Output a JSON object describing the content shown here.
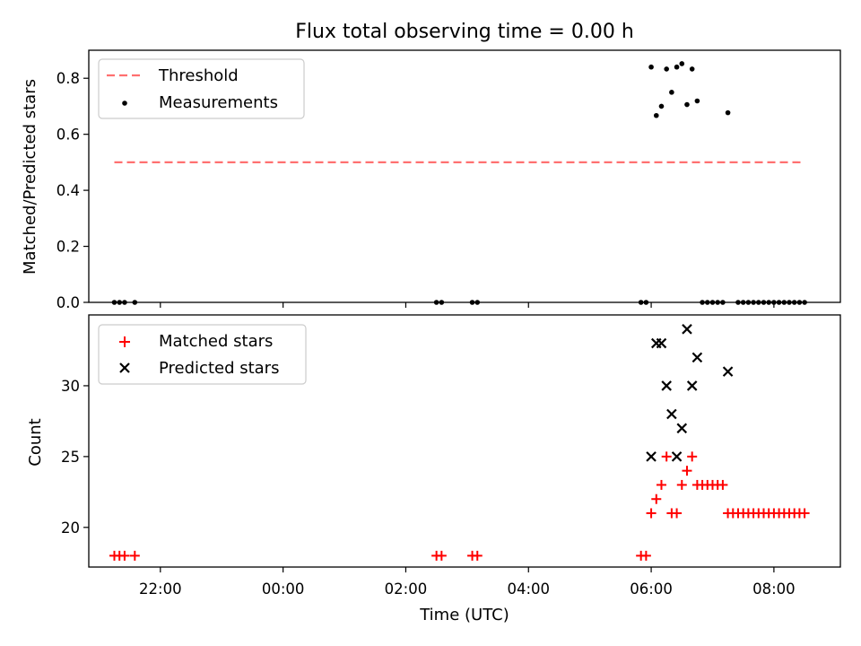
{
  "chart_data": [
    {
      "type": "scatter",
      "title": "Flux total observing time = 0.00 h",
      "ylabel": "Matched/Predicted stars",
      "xlabel": "",
      "ylim": [
        0,
        0.9
      ],
      "yticks": [
        0.0,
        0.2,
        0.4,
        0.6,
        0.8
      ],
      "grid": false,
      "legend_position": "top-left",
      "threshold": {
        "name": "Threshold",
        "value": 0.5,
        "x_start": "21:15",
        "x_end": "08:30",
        "color": "#ff7070",
        "style": "dashed"
      },
      "series": [
        {
          "name": "Measurements",
          "color": "#000000",
          "marker": "dot",
          "points": [
            {
              "x": "21:15",
              "y": 0.0
            },
            {
              "x": "21:20",
              "y": 0.0
            },
            {
              "x": "21:25",
              "y": 0.0
            },
            {
              "x": "21:35",
              "y": 0.0
            },
            {
              "x": "02:30",
              "y": 0.0
            },
            {
              "x": "02:35",
              "y": 0.0
            },
            {
              "x": "03:05",
              "y": 0.0
            },
            {
              "x": "03:10",
              "y": 0.0
            },
            {
              "x": "05:50",
              "y": 0.0
            },
            {
              "x": "05:55",
              "y": 0.0
            },
            {
              "x": "06:00",
              "y": 0.84
            },
            {
              "x": "06:05",
              "y": 0.667
            },
            {
              "x": "06:10",
              "y": 0.7
            },
            {
              "x": "06:15",
              "y": 0.833
            },
            {
              "x": "06:20",
              "y": 0.75
            },
            {
              "x": "06:25",
              "y": 0.84
            },
            {
              "x": "06:30",
              "y": 0.852
            },
            {
              "x": "06:35",
              "y": 0.706
            },
            {
              "x": "06:40",
              "y": 0.833
            },
            {
              "x": "06:45",
              "y": 0.719
            },
            {
              "x": "07:15",
              "y": 0.677
            },
            {
              "x": "06:50",
              "y": 0.0
            },
            {
              "x": "06:55",
              "y": 0.0
            },
            {
              "x": "07:00",
              "y": 0.0
            },
            {
              "x": "07:05",
              "y": 0.0
            },
            {
              "x": "07:10",
              "y": 0.0
            },
            {
              "x": "07:25",
              "y": 0.0
            },
            {
              "x": "07:30",
              "y": 0.0
            },
            {
              "x": "07:35",
              "y": 0.0
            },
            {
              "x": "07:40",
              "y": 0.0
            },
            {
              "x": "07:45",
              "y": 0.0
            },
            {
              "x": "07:50",
              "y": 0.0
            },
            {
              "x": "07:55",
              "y": 0.0
            },
            {
              "x": "08:00",
              "y": 0.0
            },
            {
              "x": "08:05",
              "y": 0.0
            },
            {
              "x": "08:10",
              "y": 0.0
            },
            {
              "x": "08:15",
              "y": 0.0
            },
            {
              "x": "08:20",
              "y": 0.0
            },
            {
              "x": "08:25",
              "y": 0.0
            },
            {
              "x": "08:30",
              "y": 0.0
            }
          ]
        }
      ]
    },
    {
      "type": "scatter",
      "title": "",
      "xlabel": "Time (UTC)",
      "ylabel": "Count",
      "xlim": [
        "20:50",
        "09:05"
      ],
      "xticks": [
        "22:00",
        "00:00",
        "02:00",
        "04:00",
        "06:00",
        "08:00"
      ],
      "ylim": [
        17.2,
        35.0
      ],
      "yticks": [
        20,
        25,
        30
      ],
      "grid": false,
      "legend_position": "top-left",
      "series": [
        {
          "name": "Matched stars",
          "color": "#ff0000",
          "marker": "plus",
          "points": [
            {
              "x": "21:15",
              "y": 18
            },
            {
              "x": "21:20",
              "y": 18
            },
            {
              "x": "21:25",
              "y": 18
            },
            {
              "x": "21:35",
              "y": 18
            },
            {
              "x": "02:30",
              "y": 18
            },
            {
              "x": "02:35",
              "y": 18
            },
            {
              "x": "03:05",
              "y": 18
            },
            {
              "x": "03:10",
              "y": 18
            },
            {
              "x": "05:50",
              "y": 18
            },
            {
              "x": "05:55",
              "y": 18
            },
            {
              "x": "06:00",
              "y": 21
            },
            {
              "x": "06:05",
              "y": 22
            },
            {
              "x": "06:10",
              "y": 23
            },
            {
              "x": "06:15",
              "y": 25
            },
            {
              "x": "06:20",
              "y": 21
            },
            {
              "x": "06:25",
              "y": 21
            },
            {
              "x": "06:30",
              "y": 23
            },
            {
              "x": "06:35",
              "y": 24
            },
            {
              "x": "06:40",
              "y": 25
            },
            {
              "x": "06:45",
              "y": 23
            },
            {
              "x": "06:50",
              "y": 23
            },
            {
              "x": "06:55",
              "y": 23
            },
            {
              "x": "07:00",
              "y": 23
            },
            {
              "x": "07:05",
              "y": 23
            },
            {
              "x": "07:10",
              "y": 23
            },
            {
              "x": "07:15",
              "y": 21
            },
            {
              "x": "07:20",
              "y": 21
            },
            {
              "x": "07:25",
              "y": 21
            },
            {
              "x": "07:30",
              "y": 21
            },
            {
              "x": "07:35",
              "y": 21
            },
            {
              "x": "07:40",
              "y": 21
            },
            {
              "x": "07:45",
              "y": 21
            },
            {
              "x": "07:50",
              "y": 21
            },
            {
              "x": "07:55",
              "y": 21
            },
            {
              "x": "08:00",
              "y": 21
            },
            {
              "x": "08:05",
              "y": 21
            },
            {
              "x": "08:10",
              "y": 21
            },
            {
              "x": "08:15",
              "y": 21
            },
            {
              "x": "08:20",
              "y": 21
            },
            {
              "x": "08:25",
              "y": 21
            },
            {
              "x": "08:30",
              "y": 21
            }
          ]
        },
        {
          "name": "Predicted stars",
          "color": "#000000",
          "marker": "x",
          "points": [
            {
              "x": "06:00",
              "y": 25
            },
            {
              "x": "06:05",
              "y": 33
            },
            {
              "x": "06:10",
              "y": 33
            },
            {
              "x": "06:15",
              "y": 30
            },
            {
              "x": "06:20",
              "y": 28
            },
            {
              "x": "06:25",
              "y": 25
            },
            {
              "x": "06:30",
              "y": 27
            },
            {
              "x": "06:35",
              "y": 34
            },
            {
              "x": "06:40",
              "y": 30
            },
            {
              "x": "06:45",
              "y": 32
            },
            {
              "x": "07:15",
              "y": 31
            }
          ]
        }
      ]
    }
  ]
}
